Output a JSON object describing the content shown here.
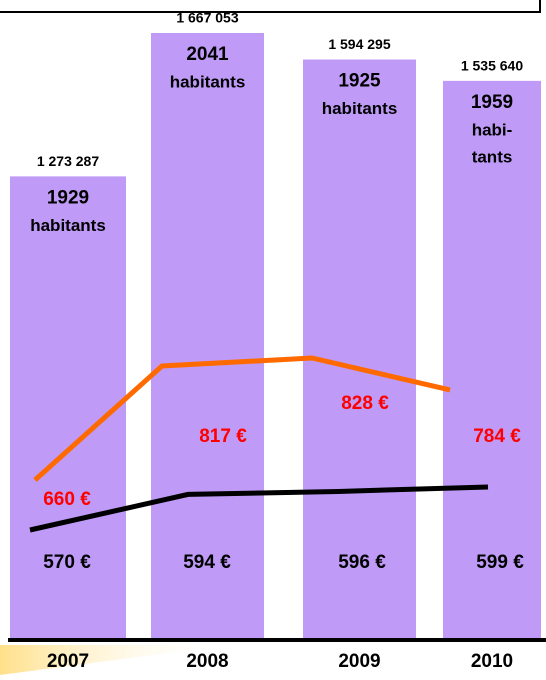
{
  "chart_data": {
    "type": "bar",
    "categories": [
      "2007",
      "2008",
      "2009",
      "2010"
    ],
    "values": [
      1273287,
      1667053,
      1594295,
      1535640
    ],
    "value_labels": [
      "1 273 287",
      "1 667 053",
      "1 594 295",
      "1 535 640"
    ],
    "color": "#bf9bf7",
    "populations": [
      "1929",
      "2041",
      "1925",
      "1959"
    ],
    "population_units": [
      [
        "habitants"
      ],
      [
        "habitants"
      ],
      [
        "habitants"
      ],
      [
        "habi-",
        "tants"
      ]
    ],
    "lines": [
      {
        "color": "#ff6a00",
        "label_color": "#ff0000",
        "values": [
          660,
          817,
          828,
          784
        ],
        "value_labels": [
          "660 €",
          "817 €",
          "828 €",
          "784 €"
        ]
      },
      {
        "color": "#000000",
        "label_color": "#000000",
        "values": [
          570,
          594,
          596,
          599
        ],
        "value_labels": [
          "570 €",
          "594 €",
          "596 €",
          "599 €"
        ]
      }
    ]
  }
}
